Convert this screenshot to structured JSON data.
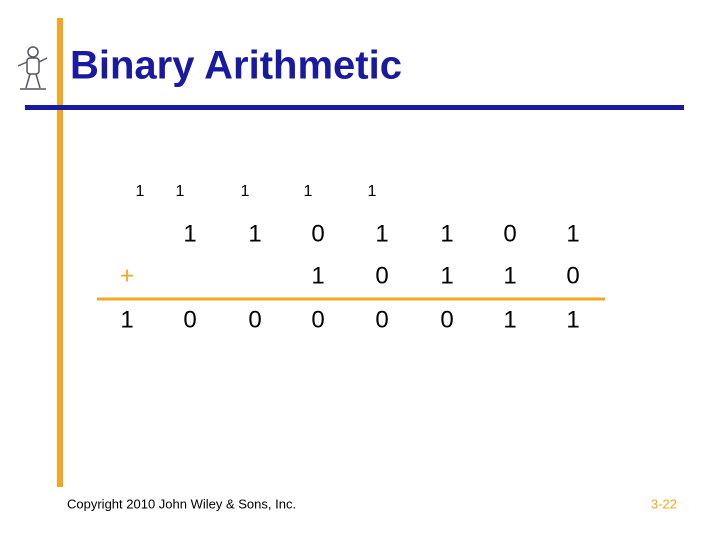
{
  "header": {
    "title": "Binary Arithmetic"
  },
  "sum": {
    "carries": [
      "1",
      "1",
      "1",
      "1",
      "1"
    ],
    "operand1": [
      "1",
      "1",
      "0",
      "1",
      "1",
      "0",
      "1"
    ],
    "operator": "+",
    "operand2": [
      "1",
      "0",
      "1",
      "1",
      "0"
    ],
    "result": [
      "1",
      "0",
      "0",
      "0",
      "0",
      "0",
      "1",
      "1"
    ]
  },
  "footer": {
    "copyright": "Copyright 2010 John Wiley & Sons, Inc.",
    "page": "3-22"
  }
}
